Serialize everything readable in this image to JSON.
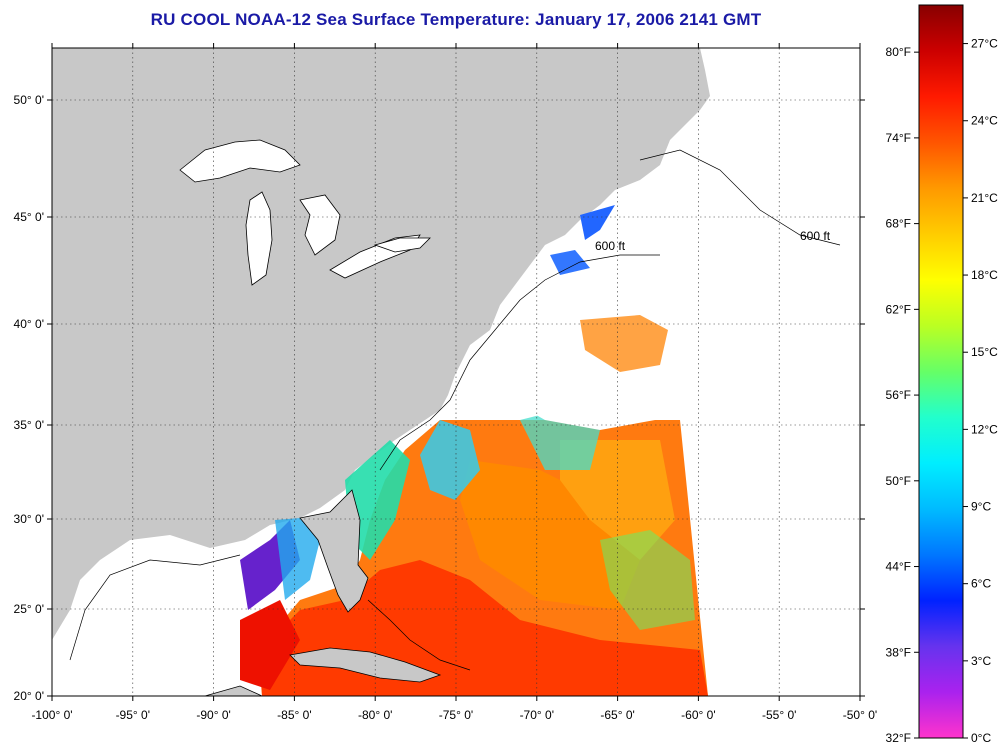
{
  "title": "RU COOL  NOAA-12  Sea Surface Temperature:  January 17, 2006 2141 GMT",
  "map": {
    "lat_labels": [
      "50° 0'",
      "45° 0'",
      "40° 0'",
      "35° 0'",
      "30° 0'",
      "25° 0'",
      "20° 0'"
    ],
    "lon_labels": [
      "-100° 0'",
      "-95° 0'",
      "-90° 0'",
      "-85° 0'",
      "-80° 0'",
      "-75° 0'",
      "-70° 0'",
      "-65° 0'",
      "-60° 0'",
      "-55° 0'",
      "-50° 0'"
    ],
    "lat_values": [
      50,
      45,
      40,
      35,
      30,
      25,
      20
    ],
    "lon_values": [
      -100,
      -95,
      -90,
      -85,
      -80,
      -75,
      -70,
      -65,
      -60,
      -55,
      -50
    ],
    "contour_label": "600 ft",
    "land_color": "#c8c8c8",
    "no_data_color": "#ffffff"
  },
  "colorbar": {
    "fahrenheit_labels": [
      "80°F",
      "74°F",
      "68°F",
      "62°F",
      "56°F",
      "50°F",
      "44°F",
      "38°F",
      "32°F"
    ],
    "celsius_labels": [
      "27°C",
      "24°C",
      "21°C",
      "18°C",
      "15°C",
      "12°C",
      "9°C",
      "6°C",
      "3°C",
      "0°C"
    ],
    "celsius_values": [
      27,
      24,
      21,
      18,
      15,
      12,
      9,
      6,
      3,
      0
    ],
    "fahrenheit_values": [
      80,
      74,
      68,
      62,
      56,
      50,
      44,
      38,
      32
    ],
    "range_c": [
      0,
      28.5
    ],
    "colors": [
      "#ff33cc",
      "#aa22ee",
      "#6633ee",
      "#0022ff",
      "#0077ff",
      "#00bbff",
      "#00eeff",
      "#22ffcc",
      "#66ff66",
      "#bbff22",
      "#ffff00",
      "#ffcc00",
      "#ff9900",
      "#ff5500",
      "#ff1a00",
      "#cc0000",
      "#880000"
    ]
  }
}
